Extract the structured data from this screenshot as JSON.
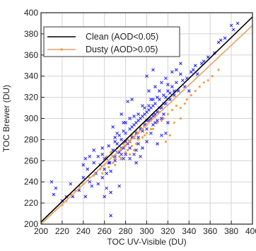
{
  "chart_data": {
    "type": "scatter",
    "xlabel": "TOC UV-Visible (DU)",
    "ylabel": "TOC Brewer (DU)",
    "xlim": [
      200,
      400
    ],
    "ylim": [
      200,
      400
    ],
    "x_ticks": [
      200,
      220,
      240,
      260,
      280,
      300,
      320,
      340,
      360,
      380,
      400
    ],
    "y_ticks": [
      200,
      220,
      240,
      260,
      280,
      300,
      320,
      340,
      360,
      380,
      400
    ],
    "grid": true,
    "legend_position": "top-left",
    "series": [
      {
        "name": "Clean (AOD<0.05)",
        "color": "#1a1aff",
        "marker": "x",
        "fit_line": {
          "color": "#000000",
          "x": [
            200,
            400
          ],
          "y": [
            202,
            396
          ]
        },
        "points": [
          [
            262,
            262
          ],
          [
            265,
            258
          ],
          [
            268,
            270
          ],
          [
            270,
            264
          ],
          [
            272,
            276
          ],
          [
            274,
            268
          ],
          [
            276,
            280
          ],
          [
            278,
            272
          ],
          [
            280,
            286
          ],
          [
            282,
            276
          ],
          [
            284,
            290
          ],
          [
            286,
            282
          ],
          [
            288,
            294
          ],
          [
            290,
            286
          ],
          [
            292,
            298
          ],
          [
            294,
            290
          ],
          [
            296,
            302
          ],
          [
            298,
            294
          ],
          [
            300,
            306
          ],
          [
            302,
            298
          ],
          [
            304,
            310
          ],
          [
            306,
            302
          ],
          [
            308,
            314
          ],
          [
            310,
            306
          ],
          [
            312,
            318
          ],
          [
            314,
            310
          ],
          [
            316,
            322
          ],
          [
            318,
            314
          ],
          [
            320,
            326
          ],
          [
            322,
            318
          ],
          [
            324,
            330
          ],
          [
            326,
            322
          ],
          [
            328,
            334
          ],
          [
            330,
            326
          ],
          [
            266,
            250
          ],
          [
            270,
            282
          ],
          [
            276,
            262
          ],
          [
            280,
            296
          ],
          [
            284,
            272
          ],
          [
            288,
            302
          ],
          [
            292,
            282
          ],
          [
            296,
            312
          ],
          [
            300,
            290
          ],
          [
            304,
            318
          ],
          [
            308,
            296
          ],
          [
            312,
            326
          ],
          [
            316,
            304
          ],
          [
            320,
            332
          ],
          [
            256,
            256
          ],
          [
            258,
            266
          ],
          [
            260,
            252
          ],
          [
            264,
            274
          ],
          [
            240,
            244
          ],
          [
            246,
            240
          ],
          [
            250,
            258
          ],
          [
            252,
            248
          ],
          [
            236,
            232
          ],
          [
            244,
            252
          ],
          [
            230,
            226
          ],
          [
            224,
            226
          ],
          [
            220,
            222
          ],
          [
            228,
            238
          ],
          [
            214,
            234
          ],
          [
            212,
            228
          ],
          [
            210,
            240
          ],
          [
            260,
            226
          ],
          [
            262,
            234
          ],
          [
            266,
            230
          ],
          [
            268,
            292
          ],
          [
            276,
            304
          ],
          [
            274,
            236
          ],
          [
            290,
            258
          ],
          [
            294,
            264
          ],
          [
            282,
            316
          ],
          [
            286,
            318
          ],
          [
            300,
            340
          ],
          [
            306,
            346
          ],
          [
            310,
            276
          ],
          [
            314,
            284
          ],
          [
            318,
            286
          ],
          [
            320,
            296
          ],
          [
            324,
            344
          ],
          [
            328,
            346
          ],
          [
            332,
            342
          ],
          [
            334,
            336
          ],
          [
            336,
            330
          ],
          [
            338,
            338
          ],
          [
            340,
            326
          ],
          [
            342,
            344
          ],
          [
            344,
            346
          ],
          [
            346,
            350
          ],
          [
            348,
            342
          ],
          [
            352,
            352
          ],
          [
            354,
            354
          ],
          [
            358,
            358
          ],
          [
            364,
            362
          ],
          [
            368,
            372
          ],
          [
            370,
            374
          ],
          [
            374,
            376
          ],
          [
            380,
            388
          ],
          [
            382,
            384
          ],
          [
            386,
            390
          ],
          [
            300,
            372
          ],
          [
            332,
            352
          ],
          [
            266,
            208
          ],
          [
            272,
            286
          ],
          [
            278,
            296
          ],
          [
            284,
            300
          ],
          [
            292,
            304
          ],
          [
            298,
            310
          ],
          [
            302,
            312
          ],
          [
            306,
            318
          ],
          [
            310,
            320
          ],
          [
            270,
            278
          ],
          [
            274,
            284
          ],
          [
            278,
            288
          ],
          [
            286,
            292
          ],
          [
            290,
            296
          ],
          [
            294,
            300
          ],
          [
            298,
            304
          ],
          [
            302,
            308
          ],
          [
            306,
            312
          ],
          [
            284,
            278
          ],
          [
            288,
            282
          ],
          [
            280,
            278
          ],
          [
            276,
            272
          ],
          [
            272,
            268
          ],
          [
            268,
            264
          ],
          [
            264,
            258
          ],
          [
            260,
            262
          ],
          [
            296,
            288
          ],
          [
            300,
            298
          ],
          [
            304,
            300
          ],
          [
            308,
            304
          ],
          [
            312,
            310
          ],
          [
            316,
            314
          ],
          [
            318,
            320
          ],
          [
            322,
            324
          ],
          [
            326,
            326
          ],
          [
            284,
            262
          ],
          [
            290,
            270
          ],
          [
            278,
            262
          ],
          [
            270,
            260
          ],
          [
            262,
            248
          ],
          [
            258,
            244
          ],
          [
            254,
            238
          ],
          [
            248,
            236
          ],
          [
            242,
            226
          ],
          [
            302,
            326
          ],
          [
            308,
            330
          ],
          [
            314,
            334
          ],
          [
            318,
            338
          ],
          [
            240,
            256
          ],
          [
            242,
            262
          ],
          [
            246,
            264
          ],
          [
            250,
            270
          ],
          [
            254,
            264
          ],
          [
            258,
            272
          ],
          [
            296,
            272
          ],
          [
            300,
            278
          ],
          [
            304,
            286
          ],
          [
            306,
            294
          ],
          [
            310,
            298
          ],
          [
            314,
            300
          ],
          [
            288,
            266
          ],
          [
            292,
            276
          ],
          [
            280,
            266
          ],
          [
            276,
            266
          ]
        ]
      },
      {
        "name": "Dusty (AOD>0.05)",
        "color": "#f0a040",
        "marker": "dot",
        "fit_line": {
          "color": "#e8a060",
          "x": [
            200,
            400
          ],
          "y": [
            200,
            388
          ]
        },
        "points": [
          [
            262,
            264
          ],
          [
            266,
            268
          ],
          [
            270,
            262
          ],
          [
            272,
            272
          ],
          [
            276,
            270
          ],
          [
            278,
            276
          ],
          [
            280,
            274
          ],
          [
            282,
            280
          ],
          [
            284,
            278
          ],
          [
            286,
            284
          ],
          [
            288,
            282
          ],
          [
            290,
            288
          ],
          [
            292,
            286
          ],
          [
            294,
            292
          ],
          [
            296,
            290
          ],
          [
            298,
            296
          ],
          [
            300,
            294
          ],
          [
            302,
            300
          ],
          [
            304,
            298
          ],
          [
            306,
            304
          ],
          [
            308,
            302
          ],
          [
            310,
            308
          ],
          [
            312,
            306
          ],
          [
            314,
            312
          ],
          [
            268,
            258
          ],
          [
            274,
            264
          ],
          [
            280,
            268
          ],
          [
            286,
            274
          ],
          [
            292,
            280
          ],
          [
            298,
            284
          ],
          [
            304,
            290
          ],
          [
            310,
            296
          ],
          [
            316,
            300
          ],
          [
            320,
            304
          ],
          [
            324,
            308
          ],
          [
            328,
            312
          ],
          [
            332,
            310
          ],
          [
            336,
            314
          ],
          [
            338,
            318
          ],
          [
            342,
            322
          ],
          [
            346,
            326
          ],
          [
            350,
            330
          ],
          [
            354,
            334
          ],
          [
            358,
            336
          ],
          [
            362,
            340
          ],
          [
            368,
            346
          ],
          [
            318,
            278
          ],
          [
            322,
            284
          ],
          [
            332,
            300
          ],
          [
            326,
            296
          ],
          [
            256,
            252
          ],
          [
            258,
            248
          ],
          [
            260,
            256
          ],
          [
            264,
            254
          ],
          [
            250,
            246
          ],
          [
            246,
            244
          ],
          [
            240,
            238
          ],
          [
            236,
            236
          ],
          [
            232,
            232
          ],
          [
            228,
            228
          ],
          [
            224,
            222
          ],
          [
            220,
            218
          ],
          [
            284,
            266
          ],
          [
            288,
            270
          ],
          [
            276,
            262
          ],
          [
            300,
            286
          ],
          [
            306,
            290
          ],
          [
            314,
            298
          ],
          [
            296,
            282
          ],
          [
            290,
            276
          ],
          [
            282,
            270
          ],
          [
            270,
            256
          ]
        ]
      }
    ]
  }
}
